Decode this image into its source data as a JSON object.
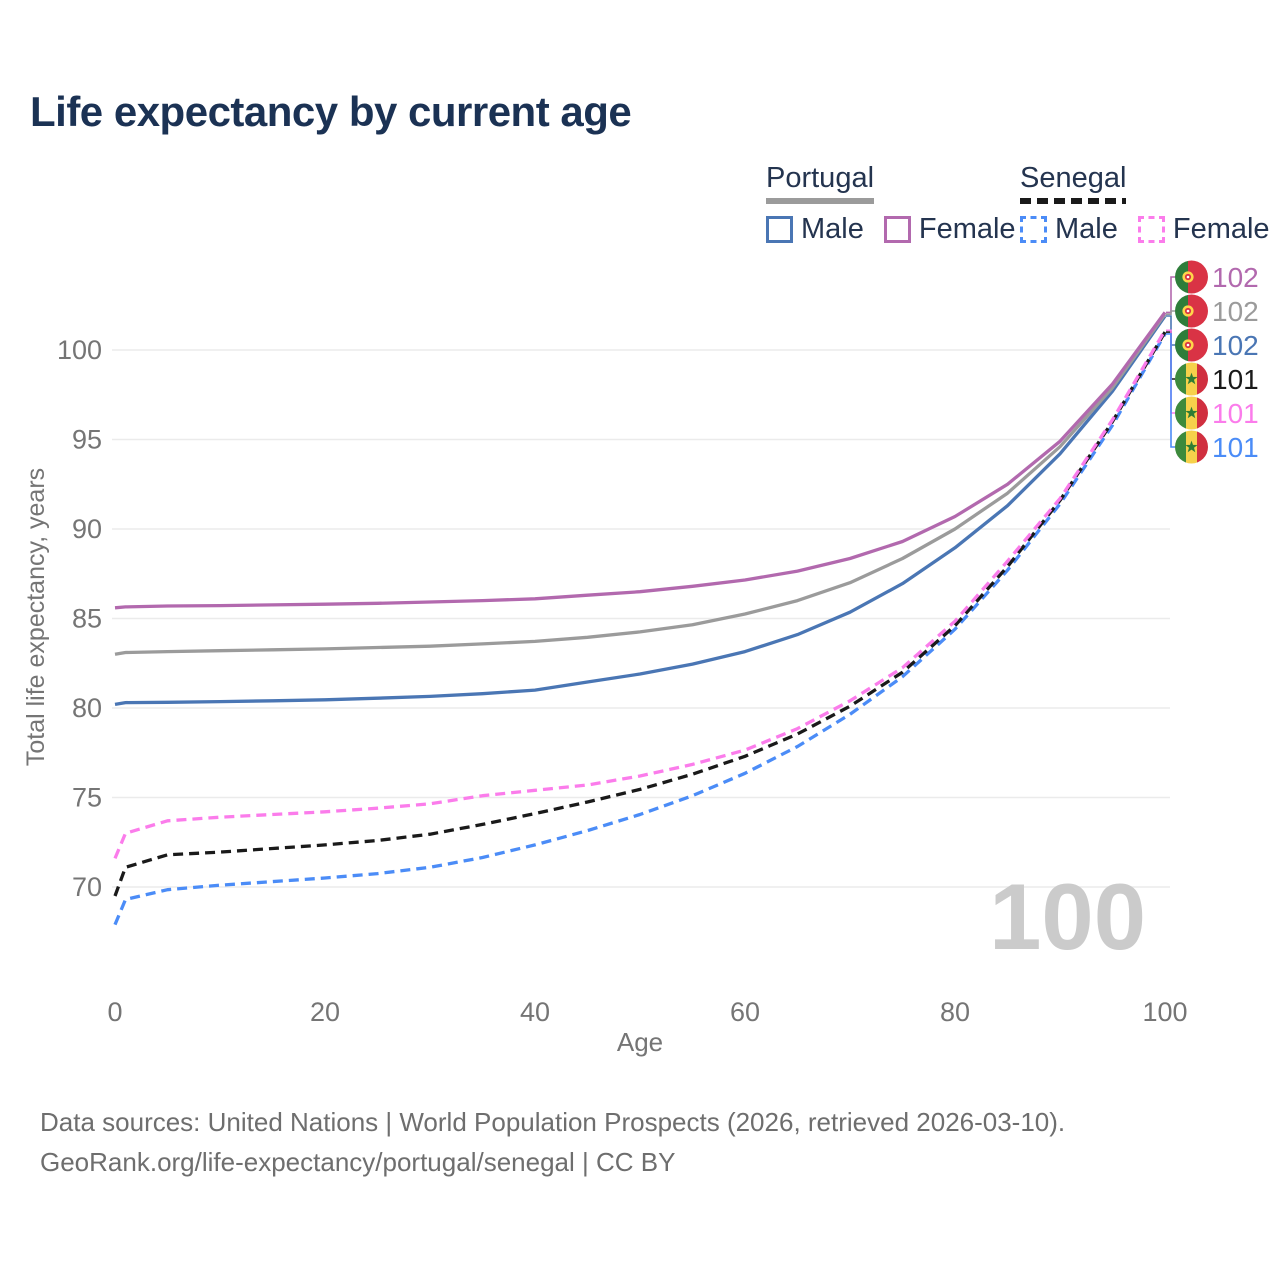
{
  "title": "Life expectancy by current age",
  "legend": {
    "groups": [
      {
        "label": "Portugal",
        "underline_style": "solid",
        "underline_color": "#9b9b9b",
        "items": [
          {
            "label": "Male",
            "color": "#4a76b4",
            "dash": false
          },
          {
            "label": "Female",
            "color": "#b269ae",
            "dash": false
          }
        ]
      },
      {
        "label": "Senegal",
        "underline_style": "dashed",
        "underline_color": "#1a1a1a",
        "items": [
          {
            "label": "Male",
            "color": "#4b8cf7",
            "dash": true
          },
          {
            "label": "Female",
            "color": "#fb7ceb",
            "dash": true
          }
        ]
      }
    ]
  },
  "watermark": "100",
  "footer": {
    "line1": "Data sources: United Nations | World Population Prospects (2026, retrieved 2026-03-10).",
    "line2": "GeoRank.org/life-expectancy/portugal/senegal | CC BY"
  },
  "chart_data": {
    "type": "line",
    "title": "Life expectancy by current age",
    "xlabel": "Age",
    "ylabel": "Total life expectancy, years",
    "xlim": [
      0,
      100
    ],
    "ylim": [
      66.5,
      103
    ],
    "grid": true,
    "legend_position": "top-right",
    "xaxis": {
      "title": "Age",
      "ticks": [
        0,
        20,
        40,
        60,
        80,
        100
      ]
    },
    "yaxis": {
      "title": "Total life expectancy, years",
      "ticks": [
        70,
        75,
        80,
        85,
        90,
        95,
        100
      ]
    },
    "x": [
      0,
      1,
      5,
      10,
      15,
      20,
      25,
      30,
      35,
      40,
      45,
      50,
      55,
      60,
      65,
      70,
      75,
      80,
      85,
      90,
      95,
      100
    ],
    "series": [
      {
        "name": "Portugal Female",
        "flag": "portugal",
        "color": "#b269ae",
        "dash": false,
        "end_label": "102",
        "values": [
          85.6,
          85.65,
          85.7,
          85.72,
          85.76,
          85.8,
          85.85,
          85.92,
          86.0,
          86.1,
          86.3,
          86.5,
          86.8,
          87.15,
          87.65,
          88.35,
          89.3,
          90.7,
          92.5,
          94.9,
          98.1,
          102.1
        ]
      },
      {
        "name": "Portugal both sexes",
        "flag": "portugal",
        "color": "#9b9b9b",
        "dash": false,
        "end_label": "102",
        "values": [
          83.0,
          83.1,
          83.15,
          83.2,
          83.25,
          83.3,
          83.38,
          83.45,
          83.58,
          83.72,
          83.95,
          84.25,
          84.65,
          85.25,
          86.0,
          87.0,
          88.35,
          90.0,
          92.0,
          94.6,
          97.9,
          102.0
        ]
      },
      {
        "name": "Portugal Male",
        "flag": "portugal",
        "color": "#4a76b4",
        "dash": false,
        "end_label": "102",
        "values": [
          80.2,
          80.3,
          80.32,
          80.36,
          80.4,
          80.46,
          80.55,
          80.65,
          80.8,
          81.0,
          81.45,
          81.9,
          82.45,
          83.15,
          84.1,
          85.35,
          86.95,
          88.95,
          91.3,
          94.2,
          97.7,
          101.9
        ]
      },
      {
        "name": "Senegal both sexes",
        "flag": "senegal",
        "color": "#1a1a1a",
        "dash": true,
        "end_label": "101",
        "values": [
          69.5,
          71.1,
          71.8,
          71.95,
          72.15,
          72.35,
          72.6,
          72.95,
          73.5,
          74.1,
          74.75,
          75.45,
          76.3,
          77.3,
          78.55,
          80.1,
          82.0,
          84.6,
          87.9,
          91.6,
          96.0,
          101.0
        ]
      },
      {
        "name": "Senegal Female",
        "flag": "senegal",
        "color": "#fb7ceb",
        "dash": true,
        "end_label": "101",
        "values": [
          71.6,
          73.0,
          73.7,
          73.9,
          74.05,
          74.2,
          74.4,
          74.65,
          75.1,
          75.4,
          75.7,
          76.2,
          76.85,
          77.65,
          78.85,
          80.4,
          82.25,
          84.85,
          88.2,
          91.7,
          96.1,
          101.1
        ]
      },
      {
        "name": "Senegal Male",
        "flag": "senegal",
        "color": "#4b8cf7",
        "dash": true,
        "end_label": "101",
        "values": [
          67.9,
          69.3,
          69.85,
          70.1,
          70.3,
          70.5,
          70.75,
          71.1,
          71.65,
          72.35,
          73.15,
          74.05,
          75.1,
          76.35,
          77.85,
          79.65,
          81.75,
          84.4,
          87.7,
          91.4,
          95.8,
          100.9
        ]
      }
    ]
  }
}
